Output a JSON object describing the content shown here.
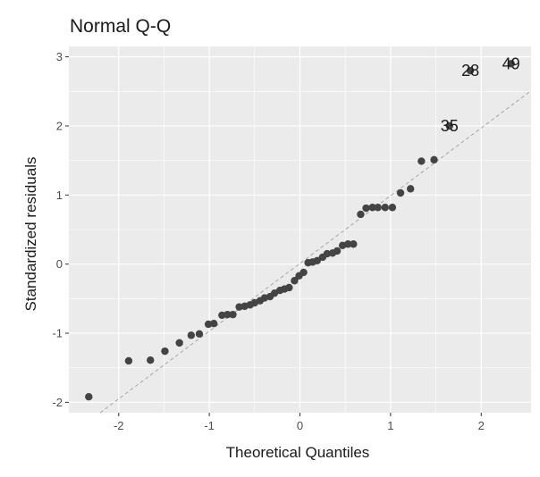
{
  "chart_data": {
    "type": "scatter",
    "title": "Normal Q-Q",
    "xlabel": "Theoretical Quantiles",
    "ylabel": "Standardized residuals",
    "xlim": [
      -2.55,
      2.55
    ],
    "ylim": [
      -2.15,
      3.15
    ],
    "x_ticks": [
      -2,
      -1,
      0,
      1,
      2
    ],
    "y_ticks": [
      -2,
      -1,
      0,
      1,
      2,
      3
    ],
    "x_tick_labels": [
      "-2",
      "-1",
      "0",
      "1",
      "2"
    ],
    "y_tick_labels": [
      "-2",
      "-1",
      "0",
      "1",
      "2",
      "3"
    ],
    "grid": true,
    "colors": {
      "panel": "#ebebeb",
      "grid": "#ffffff",
      "points": "#444444",
      "reference_line": "#a6a6a6"
    },
    "reference_line": {
      "slope": 0.98,
      "intercept": 0.01,
      "style": "dashed"
    },
    "points": [
      {
        "x": -2.33,
        "y": -1.92
      },
      {
        "x": -1.89,
        "y": -1.4
      },
      {
        "x": -1.65,
        "y": -1.39
      },
      {
        "x": -1.49,
        "y": -1.26
      },
      {
        "x": -1.33,
        "y": -1.14
      },
      {
        "x": -1.2,
        "y": -1.03
      },
      {
        "x": -1.11,
        "y": -1.01
      },
      {
        "x": -1.01,
        "y": -0.87
      },
      {
        "x": -0.95,
        "y": -0.86
      },
      {
        "x": -0.86,
        "y": -0.74
      },
      {
        "x": -0.8,
        "y": -0.73
      },
      {
        "x": -0.74,
        "y": -0.73
      },
      {
        "x": -0.67,
        "y": -0.62
      },
      {
        "x": -0.61,
        "y": -0.61
      },
      {
        "x": -0.55,
        "y": -0.59
      },
      {
        "x": -0.5,
        "y": -0.56
      },
      {
        "x": -0.44,
        "y": -0.53
      },
      {
        "x": -0.39,
        "y": -0.49
      },
      {
        "x": -0.33,
        "y": -0.47
      },
      {
        "x": -0.28,
        "y": -0.42
      },
      {
        "x": -0.22,
        "y": -0.38
      },
      {
        "x": -0.17,
        "y": -0.36
      },
      {
        "x": -0.12,
        "y": -0.34
      },
      {
        "x": -0.06,
        "y": -0.24
      },
      {
        "x": -0.01,
        "y": -0.17
      },
      {
        "x": 0.04,
        "y": -0.12
      },
      {
        "x": 0.09,
        "y": 0.02
      },
      {
        "x": 0.14,
        "y": 0.03
      },
      {
        "x": 0.19,
        "y": 0.05
      },
      {
        "x": 0.25,
        "y": 0.1
      },
      {
        "x": 0.3,
        "y": 0.15
      },
      {
        "x": 0.36,
        "y": 0.16
      },
      {
        "x": 0.41,
        "y": 0.19
      },
      {
        "x": 0.47,
        "y": 0.27
      },
      {
        "x": 0.53,
        "y": 0.29
      },
      {
        "x": 0.59,
        "y": 0.29
      },
      {
        "x": 0.67,
        "y": 0.72
      },
      {
        "x": 0.73,
        "y": 0.81
      },
      {
        "x": 0.8,
        "y": 0.82
      },
      {
        "x": 0.86,
        "y": 0.82
      },
      {
        "x": 0.94,
        "y": 0.82
      },
      {
        "x": 1.02,
        "y": 0.82
      },
      {
        "x": 1.11,
        "y": 1.03
      },
      {
        "x": 1.22,
        "y": 1.09
      },
      {
        "x": 1.34,
        "y": 1.49
      },
      {
        "x": 1.48,
        "y": 1.51
      },
      {
        "x": 1.65,
        "y": 2.0,
        "label": "35"
      },
      {
        "x": 1.88,
        "y": 2.8,
        "label": "28"
      },
      {
        "x": 2.33,
        "y": 2.9,
        "label": "49"
      }
    ]
  }
}
